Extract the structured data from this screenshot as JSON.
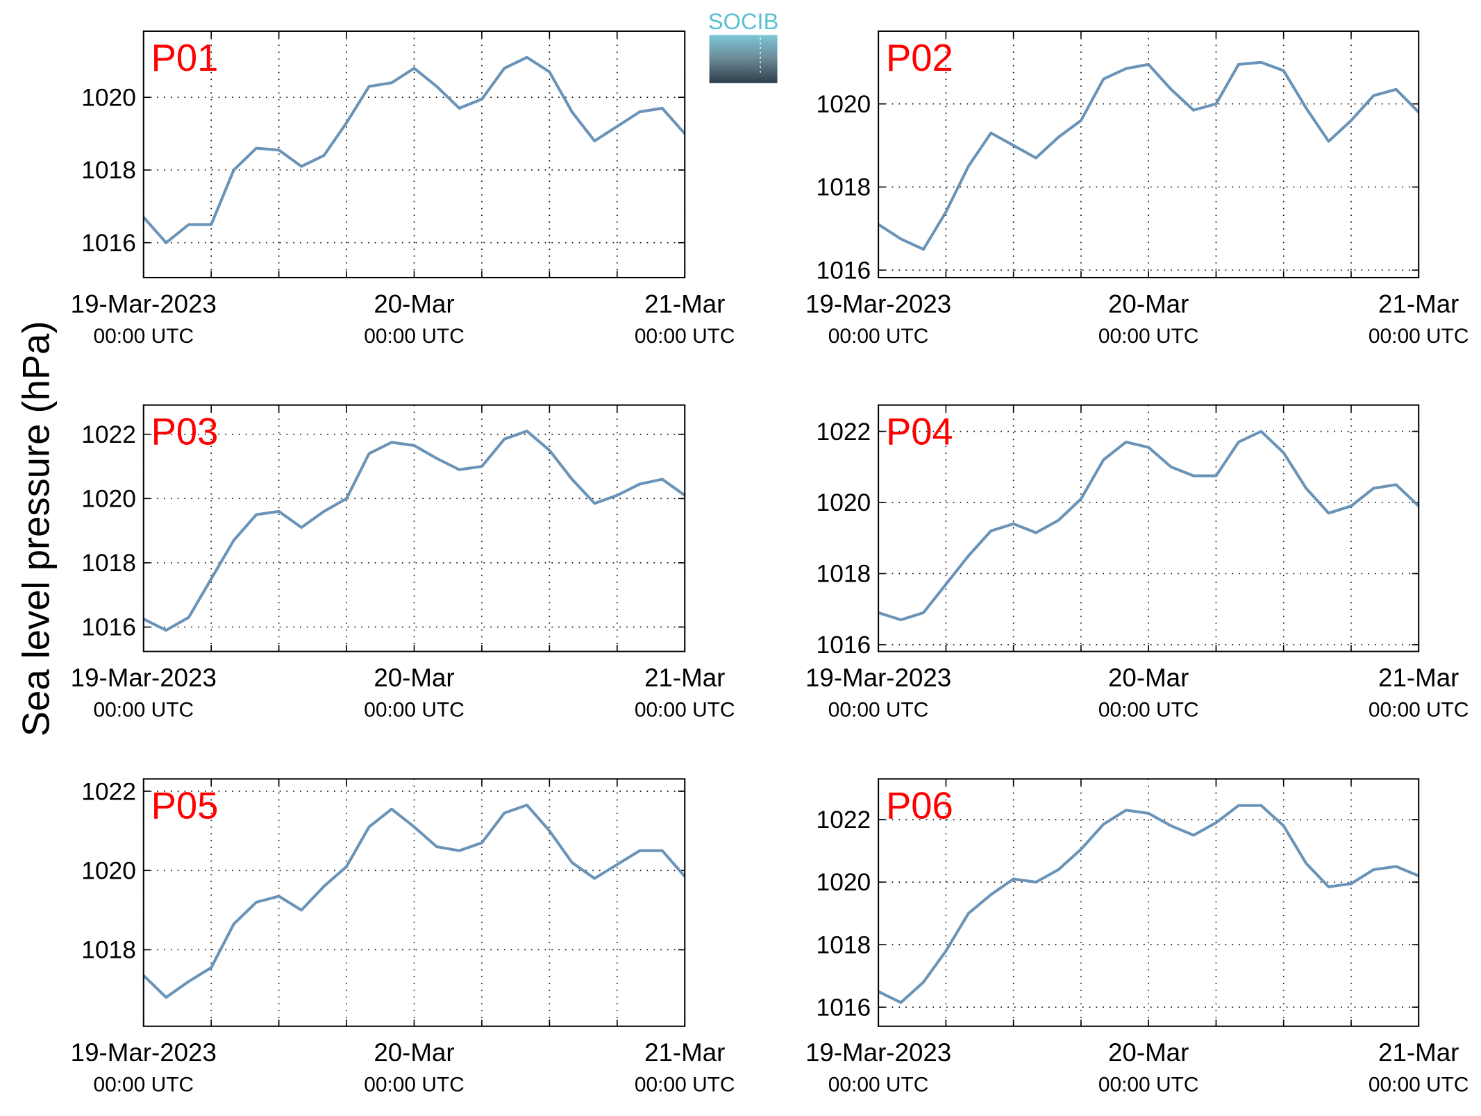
{
  "ylabel": "Sea level pressure (hPa)",
  "logo": "SOCIB",
  "chart_data": [
    {
      "type": "line",
      "title": "P01",
      "color": "#6a93b8",
      "x": [
        0,
        2,
        4,
        6,
        8,
        10,
        12,
        14,
        16,
        18,
        20,
        22,
        24,
        26,
        28,
        30,
        32,
        34,
        36,
        38,
        40,
        42,
        44,
        46,
        48
      ],
      "values": [
        1016.7,
        1016.0,
        1016.5,
        1016.5,
        1018.0,
        1018.6,
        1018.55,
        1018.1,
        1018.4,
        1019.3,
        1020.3,
        1020.4,
        1020.8,
        1020.3,
        1019.7,
        1019.95,
        1020.8,
        1021.1,
        1020.7,
        1019.6,
        1018.8,
        1019.2,
        1019.6,
        1019.7,
        1019.0
      ],
      "xlim": [
        0,
        48
      ],
      "xticks": [
        {
          "value": 0,
          "label": [
            "19-Mar-2023",
            "00:00 UTC"
          ]
        },
        {
          "value": 24,
          "label": [
            "20-Mar",
            "00:00 UTC"
          ]
        },
        {
          "value": 48,
          "label": [
            "21-Mar",
            "00:00 UTC"
          ]
        }
      ],
      "xminorticks": [
        6,
        12,
        18,
        30,
        36,
        42
      ],
      "ylim": [
        1015.04,
        1021.82
      ],
      "yticks": [
        1016,
        1018,
        1020
      ],
      "grid": true
    },
    {
      "type": "line",
      "title": "P02",
      "color": "#6a93b8",
      "x": [
        0,
        2,
        4,
        6,
        8,
        10,
        12,
        14,
        16,
        18,
        20,
        22,
        24,
        26,
        28,
        30,
        32,
        34,
        36,
        38,
        40,
        42,
        44,
        46,
        48
      ],
      "values": [
        1017.1,
        1016.75,
        1016.5,
        1017.4,
        1018.5,
        1019.3,
        1019.0,
        1018.7,
        1019.2,
        1019.6,
        1020.6,
        1020.85,
        1020.95,
        1020.35,
        1019.85,
        1020.0,
        1020.95,
        1021.0,
        1020.8,
        1019.9,
        1019.1,
        1019.6,
        1020.2,
        1020.35,
        1019.8
      ],
      "xlim": [
        0,
        48
      ],
      "xticks": [
        {
          "value": 0,
          "label": [
            "19-Mar-2023",
            "00:00 UTC"
          ]
        },
        {
          "value": 24,
          "label": [
            "20-Mar",
            "00:00 UTC"
          ]
        },
        {
          "value": 48,
          "label": [
            "21-Mar",
            "00:00 UTC"
          ]
        }
      ],
      "xminorticks": [
        6,
        12,
        18,
        30,
        36,
        42
      ],
      "ylim": [
        1015.82,
        1021.75
      ],
      "yticks": [
        1016,
        1018,
        1020
      ],
      "grid": true
    },
    {
      "type": "line",
      "title": "P03",
      "color": "#6a93b8",
      "x": [
        0,
        2,
        4,
        6,
        8,
        10,
        12,
        14,
        16,
        18,
        20,
        22,
        24,
        26,
        28,
        30,
        32,
        34,
        36,
        38,
        40,
        42,
        44,
        46,
        48
      ],
      "values": [
        1016.25,
        1015.9,
        1016.3,
        1017.5,
        1018.7,
        1019.5,
        1019.6,
        1019.1,
        1019.6,
        1020.0,
        1021.4,
        1021.75,
        1021.65,
        1021.25,
        1020.9,
        1021.0,
        1021.85,
        1022.1,
        1021.5,
        1020.6,
        1019.85,
        1020.1,
        1020.45,
        1020.6,
        1020.1
      ],
      "xlim": [
        0,
        48
      ],
      "xticks": [
        {
          "value": 0,
          "label": [
            "19-Mar-2023",
            "00:00 UTC"
          ]
        },
        {
          "value": 24,
          "label": [
            "20-Mar",
            "00:00 UTC"
          ]
        },
        {
          "value": 48,
          "label": [
            "21-Mar",
            "00:00 UTC"
          ]
        }
      ],
      "xminorticks": [
        6,
        12,
        18,
        30,
        36,
        42
      ],
      "ylim": [
        1015.24,
        1022.91
      ],
      "yticks": [
        1016,
        1018,
        1020,
        1022
      ],
      "grid": true
    },
    {
      "type": "line",
      "title": "P04",
      "color": "#6a93b8",
      "x": [
        0,
        2,
        4,
        6,
        8,
        10,
        12,
        14,
        16,
        18,
        20,
        22,
        24,
        26,
        28,
        30,
        32,
        34,
        36,
        38,
        40,
        42,
        44,
        46,
        48
      ],
      "values": [
        1016.9,
        1016.7,
        1016.9,
        1017.7,
        1018.5,
        1019.2,
        1019.4,
        1019.15,
        1019.5,
        1020.1,
        1021.2,
        1021.7,
        1021.55,
        1021.0,
        1020.75,
        1020.75,
        1021.7,
        1022.0,
        1021.4,
        1020.4,
        1019.7,
        1019.9,
        1020.4,
        1020.5,
        1019.9
      ],
      "xlim": [
        0,
        48
      ],
      "xticks": [
        {
          "value": 0,
          "label": [
            "19-Mar-2023",
            "00:00 UTC"
          ]
        },
        {
          "value": 24,
          "label": [
            "20-Mar",
            "00:00 UTC"
          ]
        },
        {
          "value": 48,
          "label": [
            "21-Mar",
            "00:00 UTC"
          ]
        }
      ],
      "xminorticks": [
        6,
        12,
        18,
        30,
        36,
        42
      ],
      "ylim": [
        1015.81,
        1022.74
      ],
      "yticks": [
        1016,
        1018,
        1020,
        1022
      ],
      "grid": true
    },
    {
      "type": "line",
      "title": "P05",
      "color": "#6a93b8",
      "x": [
        0,
        2,
        4,
        6,
        8,
        10,
        12,
        14,
        16,
        18,
        20,
        22,
        24,
        26,
        28,
        30,
        32,
        34,
        36,
        38,
        40,
        42,
        44,
        46,
        48
      ],
      "values": [
        1017.35,
        1016.8,
        1017.2,
        1017.55,
        1018.65,
        1019.2,
        1019.35,
        1019.0,
        1019.6,
        1020.1,
        1021.1,
        1021.55,
        1021.1,
        1020.6,
        1020.5,
        1020.7,
        1021.45,
        1021.65,
        1021.0,
        1020.2,
        1019.8,
        1020.15,
        1020.5,
        1020.5,
        1019.85
      ],
      "xlim": [
        0,
        48
      ],
      "xticks": [
        {
          "value": 0,
          "label": [
            "19-Mar-2023",
            "00:00 UTC"
          ]
        },
        {
          "value": 24,
          "label": [
            "20-Mar",
            "00:00 UTC"
          ]
        },
        {
          "value": 48,
          "label": [
            "21-Mar",
            "00:00 UTC"
          ]
        }
      ],
      "xminorticks": [
        6,
        12,
        18,
        30,
        36,
        42
      ],
      "ylim": [
        1016.07,
        1022.31
      ],
      "yticks": [
        1018,
        1020,
        1022
      ],
      "grid": true
    },
    {
      "type": "line",
      "title": "P06",
      "color": "#6a93b8",
      "x": [
        0,
        2,
        4,
        6,
        8,
        10,
        12,
        14,
        16,
        18,
        20,
        22,
        24,
        26,
        28,
        30,
        32,
        34,
        36,
        38,
        40,
        42,
        44,
        46,
        48
      ],
      "values": [
        1016.5,
        1016.15,
        1016.8,
        1017.8,
        1019.0,
        1019.6,
        1020.1,
        1020.0,
        1020.4,
        1021.05,
        1021.85,
        1022.3,
        1022.2,
        1021.8,
        1021.5,
        1021.9,
        1022.45,
        1022.45,
        1021.8,
        1020.6,
        1019.85,
        1019.95,
        1020.4,
        1020.5,
        1020.2
      ],
      "xlim": [
        0,
        48
      ],
      "xticks": [
        {
          "value": 0,
          "label": [
            "19-Mar-2023",
            "00:00 UTC"
          ]
        },
        {
          "value": 24,
          "label": [
            "20-Mar",
            "00:00 UTC"
          ]
        },
        {
          "value": 48,
          "label": [
            "21-Mar",
            "00:00 UTC"
          ]
        }
      ],
      "xminorticks": [
        6,
        12,
        18,
        30,
        36,
        42
      ],
      "ylim": [
        1015.39,
        1023.3
      ],
      "yticks": [
        1016,
        1018,
        1020,
        1022
      ],
      "grid": true
    }
  ]
}
